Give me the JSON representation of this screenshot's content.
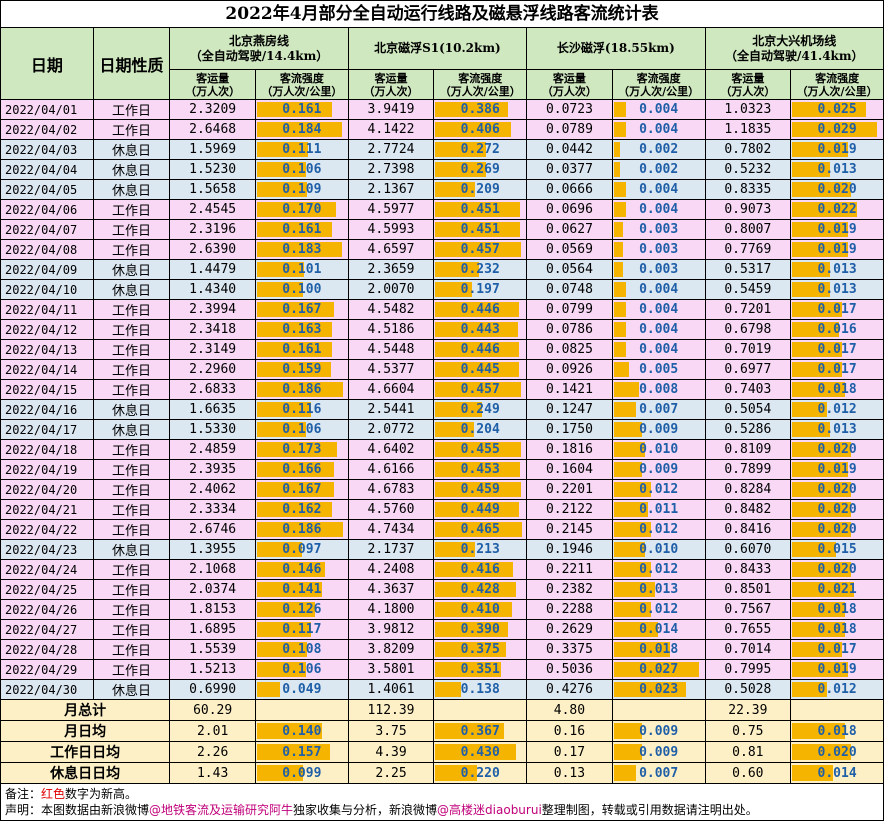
{
  "title": "2022年4月部分全自动运行线路及磁悬浮线路客流统计表",
  "header": {
    "date": "日期",
    "type": "日期性质",
    "lines": [
      {
        "name": "北京燕房线",
        "sub": "（全自动驾驶/14.4km）"
      },
      {
        "name": "北京磁浮S1(10.2km)",
        "sub": ""
      },
      {
        "name": "长沙磁浮(18.55km)",
        "sub": ""
      },
      {
        "name": "北京大兴机场线",
        "sub": "（全自动驾驶/41.4km）"
      }
    ],
    "vol_label": "客运量",
    "vol_unit": "（万人次）",
    "int_label": "客流强度",
    "int_unit": "（万人次/公里）"
  },
  "rows": [
    {
      "date": "2022/04/01",
      "type": "工作日",
      "kind": "workday",
      "v": [
        "2.3209",
        "0.161",
        "3.9419",
        "0.386",
        "0.0723",
        "0.004",
        "1.0323",
        "0.025"
      ]
    },
    {
      "date": "2022/04/02",
      "type": "工作日",
      "kind": "workday",
      "v": [
        "2.6468",
        "0.184",
        "4.1422",
        "0.406",
        "0.0789",
        "0.004",
        "1.1835",
        "0.029"
      ]
    },
    {
      "date": "2022/04/03",
      "type": "休息日",
      "kind": "restday",
      "v": [
        "1.5969",
        "0.111",
        "2.7724",
        "0.272",
        "0.0442",
        "0.002",
        "0.7802",
        "0.019"
      ]
    },
    {
      "date": "2022/04/04",
      "type": "休息日",
      "kind": "restday",
      "v": [
        "1.5230",
        "0.106",
        "2.7398",
        "0.269",
        "0.0377",
        "0.002",
        "0.5232",
        "0.013"
      ]
    },
    {
      "date": "2022/04/05",
      "type": "休息日",
      "kind": "restday",
      "v": [
        "1.5658",
        "0.109",
        "2.1367",
        "0.209",
        "0.0666",
        "0.004",
        "0.8335",
        "0.020"
      ]
    },
    {
      "date": "2022/04/06",
      "type": "工作日",
      "kind": "workday",
      "v": [
        "2.4545",
        "0.170",
        "4.5977",
        "0.451",
        "0.0696",
        "0.004",
        "0.9073",
        "0.022"
      ]
    },
    {
      "date": "2022/04/07",
      "type": "工作日",
      "kind": "workday",
      "v": [
        "2.3196",
        "0.161",
        "4.5993",
        "0.451",
        "0.0627",
        "0.003",
        "0.8007",
        "0.019"
      ]
    },
    {
      "date": "2022/04/08",
      "type": "工作日",
      "kind": "workday",
      "v": [
        "2.6390",
        "0.183",
        "4.6597",
        "0.457",
        "0.0569",
        "0.003",
        "0.7769",
        "0.019"
      ]
    },
    {
      "date": "2022/04/09",
      "type": "休息日",
      "kind": "restday",
      "v": [
        "1.4479",
        "0.101",
        "2.3659",
        "0.232",
        "0.0564",
        "0.003",
        "0.5317",
        "0.013"
      ]
    },
    {
      "date": "2022/04/10",
      "type": "休息日",
      "kind": "restday",
      "v": [
        "1.4340",
        "0.100",
        "2.0070",
        "0.197",
        "0.0748",
        "0.004",
        "0.5459",
        "0.013"
      ]
    },
    {
      "date": "2022/04/11",
      "type": "工作日",
      "kind": "workday",
      "v": [
        "2.3994",
        "0.167",
        "4.5482",
        "0.446",
        "0.0799",
        "0.004",
        "0.7201",
        "0.017"
      ]
    },
    {
      "date": "2022/04/12",
      "type": "工作日",
      "kind": "workday",
      "v": [
        "2.3418",
        "0.163",
        "4.5186",
        "0.443",
        "0.0786",
        "0.004",
        "0.6798",
        "0.016"
      ]
    },
    {
      "date": "2022/04/13",
      "type": "工作日",
      "kind": "workday",
      "v": [
        "2.3149",
        "0.161",
        "4.5448",
        "0.446",
        "0.0825",
        "0.004",
        "0.7019",
        "0.017"
      ]
    },
    {
      "date": "2022/04/14",
      "type": "工作日",
      "kind": "workday",
      "v": [
        "2.2960",
        "0.159",
        "4.5377",
        "0.445",
        "0.0926",
        "0.005",
        "0.6977",
        "0.017"
      ]
    },
    {
      "date": "2022/04/15",
      "type": "工作日",
      "kind": "workday",
      "v": [
        "2.6833",
        "0.186",
        "4.6604",
        "0.457",
        "0.1421",
        "0.008",
        "0.7403",
        "0.018"
      ]
    },
    {
      "date": "2022/04/16",
      "type": "休息日",
      "kind": "restday",
      "v": [
        "1.6635",
        "0.116",
        "2.5441",
        "0.249",
        "0.1247",
        "0.007",
        "0.5054",
        "0.012"
      ]
    },
    {
      "date": "2022/04/17",
      "type": "休息日",
      "kind": "restday",
      "v": [
        "1.5330",
        "0.106",
        "2.0772",
        "0.204",
        "0.1750",
        "0.009",
        "0.5286",
        "0.013"
      ]
    },
    {
      "date": "2022/04/18",
      "type": "工作日",
      "kind": "workday",
      "v": [
        "2.4859",
        "0.173",
        "4.6402",
        "0.455",
        "0.1816",
        "0.010",
        "0.8109",
        "0.020"
      ]
    },
    {
      "date": "2022/04/19",
      "type": "工作日",
      "kind": "workday",
      "v": [
        "2.3935",
        "0.166",
        "4.6166",
        "0.453",
        "0.1604",
        "0.009",
        "0.7899",
        "0.019"
      ]
    },
    {
      "date": "2022/04/20",
      "type": "工作日",
      "kind": "workday",
      "v": [
        "2.4062",
        "0.167",
        "4.6783",
        "0.459",
        "0.2201",
        "0.012",
        "0.8284",
        "0.020"
      ]
    },
    {
      "date": "2022/04/21",
      "type": "工作日",
      "kind": "workday",
      "v": [
        "2.3334",
        "0.162",
        "4.5760",
        "0.449",
        "0.2122",
        "0.011",
        "0.8482",
        "0.020"
      ]
    },
    {
      "date": "2022/04/22",
      "type": "工作日",
      "kind": "workday",
      "v": [
        "2.6746",
        "0.186",
        "4.7434",
        "0.465",
        "0.2145",
        "0.012",
        "0.8416",
        "0.020"
      ]
    },
    {
      "date": "2022/04/23",
      "type": "休息日",
      "kind": "restday",
      "v": [
        "1.3955",
        "0.097",
        "2.1737",
        "0.213",
        "0.1946",
        "0.010",
        "0.6070",
        "0.015"
      ]
    },
    {
      "date": "2022/04/24",
      "type": "工作日",
      "kind": "workday",
      "v": [
        "2.1068",
        "0.146",
        "4.2408",
        "0.416",
        "0.2211",
        "0.012",
        "0.8433",
        "0.020"
      ]
    },
    {
      "date": "2022/04/25",
      "type": "工作日",
      "kind": "workday",
      "v": [
        "2.0374",
        "0.141",
        "4.3637",
        "0.428",
        "0.2382",
        "0.013",
        "0.8501",
        "0.021"
      ]
    },
    {
      "date": "2022/04/26",
      "type": "工作日",
      "kind": "workday",
      "v": [
        "1.8153",
        "0.126",
        "4.1800",
        "0.410",
        "0.2288",
        "0.012",
        "0.7567",
        "0.018"
      ]
    },
    {
      "date": "2022/04/27",
      "type": "工作日",
      "kind": "workday",
      "v": [
        "1.6895",
        "0.117",
        "3.9812",
        "0.390",
        "0.2629",
        "0.014",
        "0.7655",
        "0.018"
      ]
    },
    {
      "date": "2022/04/28",
      "type": "工作日",
      "kind": "workday",
      "v": [
        "1.5539",
        "0.108",
        "3.8209",
        "0.375",
        "0.3375",
        "0.018",
        "0.7014",
        "0.017"
      ]
    },
    {
      "date": "2022/04/29",
      "type": "工作日",
      "kind": "workday",
      "v": [
        "1.5213",
        "0.106",
        "3.5801",
        "0.351",
        "0.5036",
        "0.027",
        "0.7995",
        "0.019"
      ]
    },
    {
      "date": "2022/04/30",
      "type": "休息日",
      "kind": "restday",
      "v": [
        "0.6990",
        "0.049",
        "1.4061",
        "0.138",
        "0.4276",
        "0.023",
        "0.5028",
        "0.012"
      ]
    }
  ],
  "summary": [
    {
      "label": "月总计",
      "v": [
        "60.29",
        "",
        "112.39",
        "",
        "4.80",
        "",
        "22.39",
        ""
      ]
    },
    {
      "label": "月日均",
      "v": [
        "2.01",
        "0.140",
        "3.75",
        "0.367",
        "0.16",
        "0.009",
        "0.75",
        "0.018"
      ]
    },
    {
      "label": "工作日日均",
      "v": [
        "2.26",
        "0.157",
        "4.39",
        "0.430",
        "0.17",
        "0.009",
        "0.81",
        "0.020"
      ]
    },
    {
      "label": "休息日日均",
      "v": [
        "1.43",
        "0.099",
        "2.25",
        "0.220",
        "0.13",
        "0.007",
        "0.60",
        "0.014"
      ]
    }
  ],
  "intensity_max": [
    0.19,
    0.47,
    0.028,
    0.03
  ],
  "footer": {
    "note_prefix": "备注：",
    "note_red": "红色",
    "note_suffix": "数字为新高。",
    "decl_prefix": "声明：本图数据由新浪微博",
    "decl_handle1": "@地铁客流及运输研究阿牛",
    "decl_mid": "独家收集与分析，新浪微博",
    "decl_handle2": "@高楼迷diaoburui",
    "decl_suffix": "整理制图，转载或引用数据请注明出处。"
  },
  "colors": {
    "bar": "#f5b400",
    "workday": "#f8d8f5",
    "restday": "#dbe7f1",
    "header": "#cfe8bf",
    "summary": "#fdf0c6",
    "intensity_text": "#1f5fa8"
  }
}
